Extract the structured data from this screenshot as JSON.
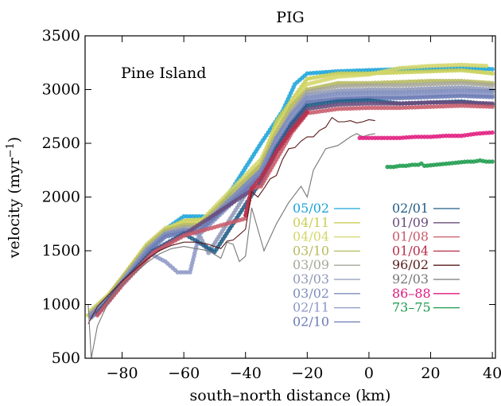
{
  "chart_data": {
    "type": "scatter",
    "title": "PIG",
    "xlabel": "south–north distance (km)",
    "ylabel": "velocity (myr",
    "ylabel_sup": "−1",
    "ylabel_end": ")",
    "annotation": "Pine Island",
    "xlim": [
      -92,
      41
    ],
    "ylim": [
      500,
      3500
    ],
    "xticks": [
      -80,
      -60,
      -40,
      -20,
      0,
      20,
      40
    ],
    "yticks": [
      500,
      1000,
      1500,
      2000,
      2500,
      3000,
      3500
    ],
    "grid": false,
    "legend_position": "bottom-right",
    "series": [
      {
        "name": "05/02",
        "color": "#1aa3d9",
        "style": "dots",
        "x": [
          -72,
          -66,
          -60,
          -55,
          -50,
          -35,
          -28,
          -24,
          -20,
          -10,
          0,
          10,
          20,
          30,
          40
        ],
        "y": [
          1550,
          1700,
          1820,
          1820,
          1820,
          2500,
          2800,
          3050,
          3150,
          3170,
          3180,
          3190,
          3190,
          3200,
          3190
        ]
      },
      {
        "name": "04/11",
        "color": "#c9cf55",
        "style": "dots",
        "x": [
          -91,
          -85,
          -78,
          -72,
          -66,
          -60,
          -55,
          -50,
          -35,
          -30,
          -25,
          -20,
          -10,
          0,
          10,
          20,
          30,
          40
        ],
        "y": [
          900,
          1070,
          1320,
          1550,
          1700,
          1780,
          1790,
          1800,
          2300,
          2700,
          2900,
          3100,
          3150,
          3150,
          3160,
          3170,
          3180,
          3150
        ]
      },
      {
        "name": "04/04",
        "color": "#d4d66a",
        "style": "dots",
        "x": [
          -90,
          -84,
          -78,
          -72,
          -66,
          -60,
          -55,
          -35,
          -30,
          -25,
          -20,
          -10,
          0,
          10,
          20,
          30,
          38
        ],
        "y": [
          950,
          1100,
          1330,
          1560,
          1710,
          1760,
          1760,
          2350,
          2650,
          2880,
          3050,
          3120,
          3140,
          3200,
          3220,
          3230,
          3220
        ]
      },
      {
        "name": "03/10",
        "color": "#b6ba5f",
        "style": "dots",
        "x": [
          -90,
          -84,
          -78,
          -72,
          -66,
          -60,
          -55,
          -35,
          -30,
          -25,
          -20,
          -10,
          0,
          10,
          20,
          30,
          40
        ],
        "y": [
          930,
          1090,
          1320,
          1540,
          1690,
          1740,
          1740,
          2300,
          2600,
          2850,
          3000,
          3060,
          3060,
          3070,
          3080,
          3080,
          3060
        ]
      },
      {
        "name": "03/09",
        "color": "#a7a79b",
        "style": "dots",
        "x": [
          -90,
          -84,
          -78,
          -72,
          -66,
          -60,
          -55,
          -35,
          -30,
          -25,
          -20,
          -10,
          0,
          10,
          20,
          30,
          40
        ],
        "y": [
          920,
          1080,
          1300,
          1520,
          1670,
          1720,
          1720,
          2250,
          2550,
          2800,
          2980,
          3030,
          3040,
          3040,
          3050,
          3060,
          3040
        ]
      },
      {
        "name": "03/03",
        "color": "#8f99b8",
        "style": "dots",
        "x": [
          -90,
          -84,
          -78,
          -72,
          -66,
          -60,
          -55,
          -52,
          -35,
          -30,
          -25,
          -20,
          -10,
          0,
          10,
          20,
          30,
          40
        ],
        "y": [
          910,
          1070,
          1290,
          1510,
          1660,
          1700,
          1650,
          1480,
          2250,
          2550,
          2780,
          2950,
          2990,
          3000,
          3000,
          3010,
          3020,
          3000
        ]
      },
      {
        "name": "03/02",
        "color": "#7d8cbd",
        "style": "dots",
        "x": [
          -90,
          -84,
          -78,
          -72,
          -66,
          -60,
          -55,
          -35,
          -30,
          -25,
          -20,
          -10,
          0,
          10,
          20,
          30,
          40
        ],
        "y": [
          900,
          1060,
          1280,
          1500,
          1650,
          1690,
          1700,
          2250,
          2550,
          2760,
          2920,
          2960,
          2970,
          2970,
          2980,
          2990,
          2980
        ]
      },
      {
        "name": "02/11",
        "color": "#8d98c6",
        "style": "dots",
        "x": [
          -90,
          -84,
          -78,
          -72,
          -66,
          -62,
          -58,
          -55,
          -35,
          -30,
          -25,
          -20,
          -10,
          0,
          10,
          20,
          30,
          40
        ],
        "y": [
          890,
          1050,
          1270,
          1490,
          1400,
          1300,
          1300,
          1650,
          2200,
          2500,
          2730,
          2900,
          2930,
          2940,
          2940,
          2950,
          2960,
          2950
        ]
      },
      {
        "name": "02/10",
        "color": "#6b7bb5",
        "style": "dots",
        "x": [
          -90,
          -84,
          -78,
          -72,
          -66,
          -60,
          -55,
          -35,
          -30,
          -25,
          -20,
          -10,
          0,
          10,
          20,
          30,
          40
        ],
        "y": [
          880,
          1040,
          1260,
          1480,
          1630,
          1670,
          1680,
          2200,
          2480,
          2700,
          2880,
          2910,
          2920,
          2920,
          2930,
          2940,
          2930
        ]
      },
      {
        "name": "02/01",
        "color": "#1f5c86",
        "style": "dots",
        "x": [
          -88,
          -80,
          -70,
          -60,
          -50,
          -35,
          -30,
          -25,
          -20,
          -10,
          0,
          10,
          20,
          30,
          40
        ],
        "y": [
          920,
          1200,
          1500,
          1660,
          1490,
          2150,
          2450,
          2680,
          2850,
          2890,
          2900,
          2870,
          2880,
          2890,
          2860
        ]
      },
      {
        "name": "01/09",
        "color": "#6a4c7d",
        "style": "dots",
        "x": [
          -88,
          -80,
          -70,
          -60,
          -35,
          -30,
          -25,
          -20,
          -10,
          0,
          10,
          20,
          30,
          40
        ],
        "y": [
          910,
          1190,
          1490,
          1650,
          2120,
          2420,
          2650,
          2820,
          2860,
          2870,
          2870,
          2880,
          2880,
          2870
        ]
      },
      {
        "name": "01/08",
        "color": "#c85a6a",
        "style": "dots",
        "x": [
          -88,
          -80,
          -70,
          -60,
          -40,
          -38,
          -35,
          -30,
          -25,
          -20,
          -10,
          0,
          10,
          20,
          30,
          40
        ],
        "y": [
          900,
          1180,
          1480,
          1640,
          1800,
          2080,
          2100,
          2350,
          2600,
          2780,
          2820,
          2830,
          2830,
          2840,
          2850,
          2840
        ]
      },
      {
        "name": "01/04",
        "color": "#b82f4a",
        "style": "dots",
        "x": [
          -40,
          -38,
          -35,
          -30,
          -25,
          -20
        ],
        "y": [
          1830,
          2080,
          2180,
          2420,
          2620,
          2790
        ]
      },
      {
        "name": "96/02",
        "color": "#5a1a1a",
        "style": "line",
        "x": [
          -91,
          -88,
          -84,
          -80,
          -76,
          -72,
          -68,
          -64,
          -60,
          -56,
          -52,
          -48,
          -46,
          -44,
          -42,
          -40,
          -38,
          -36,
          -34,
          -32,
          -30,
          -28,
          -26,
          -24,
          -22,
          -20,
          -18,
          -16,
          -14,
          -12,
          -10,
          -8,
          -6,
          -4,
          -2,
          0,
          2
        ],
        "y": [
          820,
          980,
          1100,
          1220,
          1320,
          1420,
          1500,
          1550,
          1580,
          1580,
          1560,
          1520,
          1590,
          1600,
          1650,
          1700,
          2050,
          2000,
          2080,
          2170,
          2200,
          2350,
          2450,
          2460,
          2520,
          2560,
          2560,
          2620,
          2650,
          2740,
          2700,
          2700,
          2710,
          2690,
          2700,
          2720,
          2710
        ]
      },
      {
        "name": "92/03",
        "color": "#777777",
        "style": "line",
        "x": [
          -91,
          -90,
          -88,
          -84,
          -80,
          -76,
          -72,
          -68,
          -64,
          -60,
          -56,
          -52,
          -48,
          -46,
          -44,
          -42,
          -40,
          -38,
          -34,
          -30,
          -26,
          -22,
          -20,
          -18,
          -14,
          -10,
          -6,
          -4,
          -2,
          0,
          2
        ],
        "y": [
          1000,
          500,
          800,
          1050,
          1180,
          1290,
          1390,
          1470,
          1520,
          1540,
          1520,
          1500,
          1430,
          1580,
          1560,
          1400,
          1450,
          1900,
          1500,
          1750,
          1950,
          2100,
          2000,
          2250,
          2450,
          2480,
          2560,
          2590,
          2560,
          2580,
          2590
        ]
      },
      {
        "name": "86–88",
        "color": "#e0197d",
        "style": "dots",
        "x": [
          -3,
          5,
          10,
          15,
          20,
          25,
          30,
          35,
          40
        ],
        "y": [
          2550,
          2550,
          2550,
          2560,
          2560,
          2570,
          2570,
          2590,
          2600
        ]
      },
      {
        "name": "73–75",
        "color": "#1a9a4a",
        "style": "dots",
        "x": [
          6,
          8,
          10,
          12,
          14,
          16,
          17,
          18,
          32,
          34,
          36,
          38,
          40
        ],
        "y": [
          2280,
          2280,
          2290,
          2290,
          2300,
          2300,
          2310,
          2290,
          2330,
          2330,
          2340,
          2330,
          2330
        ]
      }
    ]
  }
}
